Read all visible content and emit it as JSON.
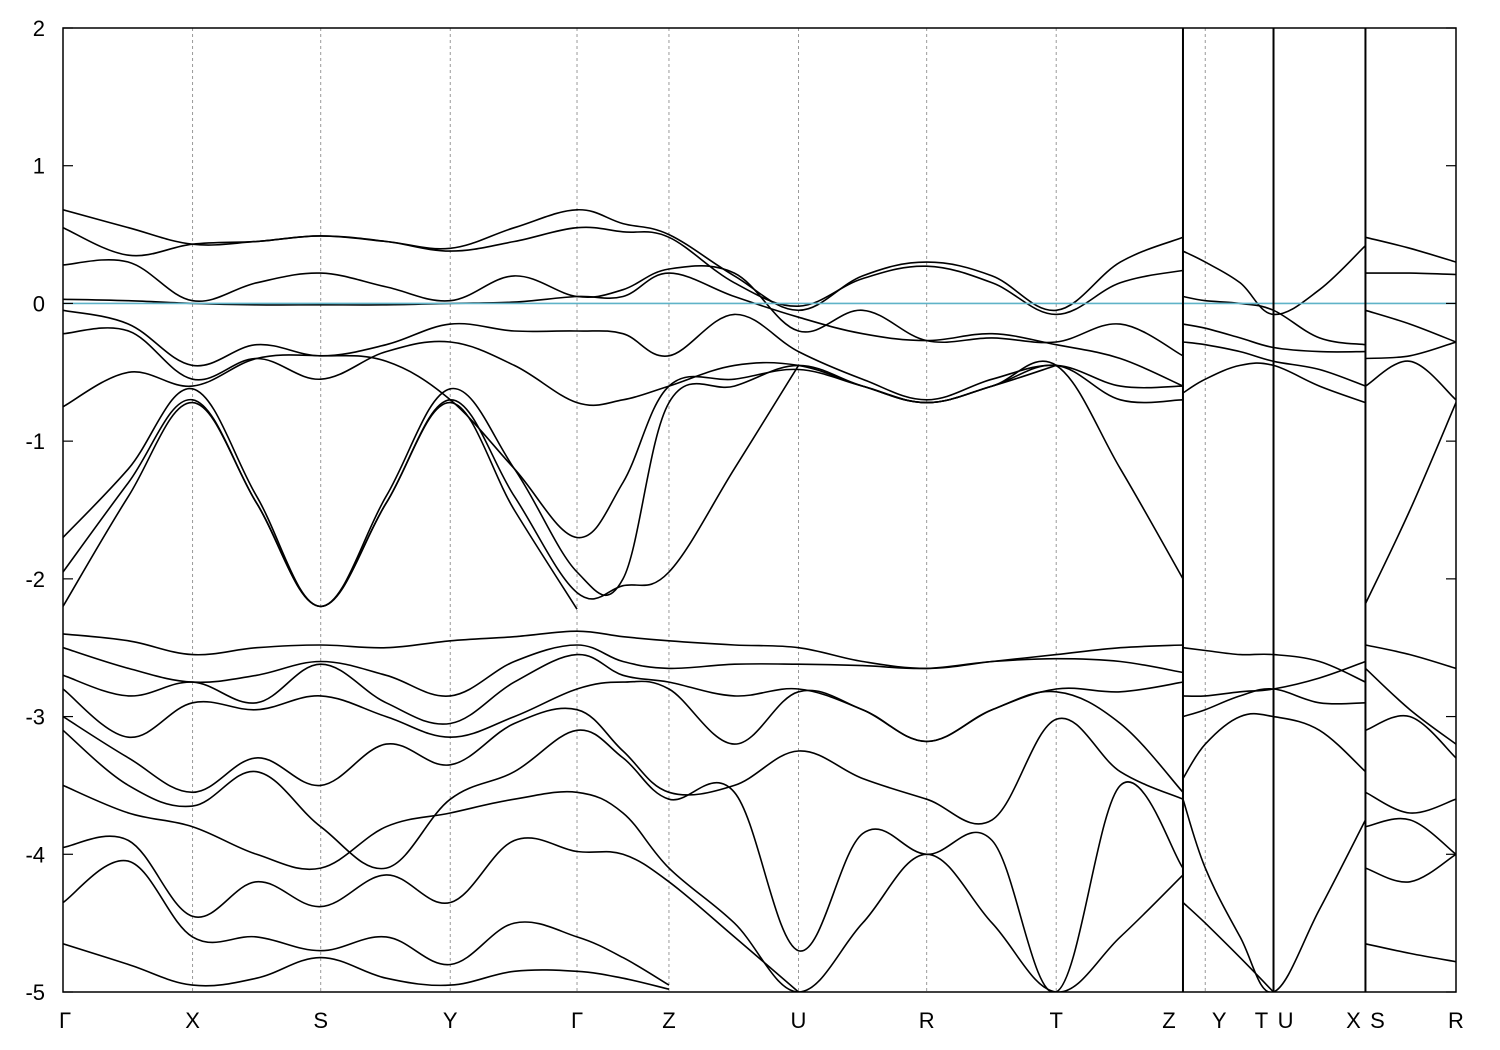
{
  "chart_data": {
    "type": "line",
    "title": "",
    "xlabel": "",
    "ylabel": "",
    "ylim": [
      -5,
      2
    ],
    "yticks": [
      2,
      1,
      0,
      -1,
      -2,
      -3,
      -4,
      -5
    ],
    "ytick_labels": [
      "2",
      "1",
      "0",
      "-1",
      "-2",
      "-3",
      "-4",
      "-5"
    ],
    "kpath_labels": [
      "Γ",
      "X",
      "S",
      "Y",
      "Γ",
      "Z",
      "U",
      "R",
      "T",
      "Z",
      "Y",
      "T",
      "U",
      "X",
      "S",
      "R"
    ],
    "kpath_positions": [
      0,
      0.093,
      0.185,
      0.278,
      0.369,
      0.435,
      0.528,
      0.62,
      0.713,
      0.804,
      0.82,
      0.869,
      0.869,
      0.935,
      0.935,
      1.0
    ],
    "segment_breaks": [
      0.804,
      0.869,
      0.935
    ],
    "fermi_level": 0,
    "fermi_color": "#5fb3c8",
    "band_color": "#000000",
    "grid": "vertical dashed lines at high-symmetry points",
    "series": [
      {
        "x": [
          0,
          0.047,
          0.093,
          0.139,
          0.185,
          0.232,
          0.278,
          0.324,
          0.369,
          0.402,
          0.435,
          0.482,
          0.528,
          0.574,
          0.62,
          0.667,
          0.713,
          0.759,
          0.804
        ],
        "values": [
          0.68,
          0.55,
          0.43,
          0.45,
          0.49,
          0.45,
          0.4,
          0.55,
          0.68,
          0.58,
          0.5,
          0.2,
          -0.05,
          0.2,
          0.3,
          0.2,
          -0.05,
          0.3,
          0.48
        ]
      },
      {
        "x": [
          0,
          0.047,
          0.093,
          0.139,
          0.185,
          0.232,
          0.278,
          0.324,
          0.369,
          0.402,
          0.435,
          0.482,
          0.528,
          0.574,
          0.62,
          0.667,
          0.713,
          0.759,
          0.804
        ],
        "values": [
          0.55,
          0.35,
          0.43,
          0.45,
          0.49,
          0.45,
          0.38,
          0.45,
          0.55,
          0.52,
          0.48,
          0.15,
          -0.02,
          0.18,
          0.27,
          0.15,
          -0.08,
          0.15,
          0.24
        ]
      },
      {
        "x": [
          0,
          0.047,
          0.093,
          0.139,
          0.185,
          0.232,
          0.278,
          0.324,
          0.369,
          0.402,
          0.435,
          0.482,
          0.528,
          0.574,
          0.62,
          0.667,
          0.713,
          0.759,
          0.804
        ],
        "values": [
          0.28,
          0.3,
          0.02,
          0.15,
          0.22,
          0.12,
          0.02,
          0.2,
          0.05,
          0.1,
          0.25,
          0.22,
          -0.2,
          -0.05,
          -0.27,
          -0.25,
          -0.28,
          -0.15,
          -0.38
        ]
      },
      {
        "x": [
          0,
          0.047,
          0.093,
          0.139,
          0.185,
          0.232,
          0.278,
          0.324,
          0.369,
          0.402,
          0.435,
          0.482,
          0.528,
          0.574,
          0.62,
          0.667,
          0.713,
          0.759,
          0.804
        ],
        "values": [
          0.03,
          0.02,
          0.0,
          -0.01,
          -0.01,
          -0.01,
          0.0,
          0.01,
          0.05,
          0.05,
          0.22,
          0.05,
          -0.1,
          -0.22,
          -0.27,
          -0.22,
          -0.3,
          -0.4,
          -0.6
        ]
      },
      {
        "x": [
          0,
          0.047,
          0.093,
          0.139,
          0.185,
          0.232,
          0.278,
          0.324,
          0.369,
          0.402,
          0.435,
          0.482,
          0.528,
          0.574,
          0.62,
          0.667,
          0.713,
          0.759,
          0.804
        ],
        "values": [
          -0.05,
          -0.15,
          -0.45,
          -0.3,
          -0.38,
          -0.3,
          -0.15,
          -0.2,
          -0.2,
          -0.22,
          -0.38,
          -0.08,
          -0.35,
          -0.55,
          -0.7,
          -0.55,
          -0.45,
          -0.6,
          -0.6
        ]
      },
      {
        "x": [
          0,
          0.047,
          0.093,
          0.139,
          0.185,
          0.232,
          0.278,
          0.324,
          0.369,
          0.402,
          0.435,
          0.482,
          0.528,
          0.574,
          0.62,
          0.667,
          0.713,
          0.759,
          0.804
        ],
        "values": [
          -0.22,
          -0.2,
          -0.55,
          -0.4,
          -0.55,
          -0.35,
          -0.28,
          -0.45,
          -0.72,
          -0.7,
          -0.6,
          -0.45,
          -0.45,
          -0.6,
          -0.72,
          -0.6,
          -0.45,
          -0.7,
          -0.7
        ]
      },
      {
        "x": [
          0,
          0.047,
          0.093,
          0.139,
          0.185,
          0.232,
          0.278,
          0.324,
          0.369,
          0.402,
          0.435,
          0.482,
          0.528,
          0.574,
          0.62,
          0.667,
          0.713,
          0.759,
          0.804
        ],
        "values": [
          -0.75,
          -0.5,
          -0.6,
          -0.4,
          -0.38,
          -0.42,
          -0.7,
          -1.2,
          -1.7,
          -1.3,
          -0.6,
          -0.55,
          -0.48,
          -0.6,
          -0.72,
          -0.6,
          -0.45,
          -1.2,
          -2.0
        ]
      },
      {
        "x": [
          0,
          0.047,
          0.093,
          0.139,
          0.185,
          0.232,
          0.278,
          0.324,
          0.369,
          0.402,
          0.435,
          0.482,
          0.528,
          0.574,
          0.62,
          0.667,
          0.713
        ],
        "values": [
          -1.7,
          -1.2,
          -0.62,
          -1.4,
          -2.2,
          -1.4,
          -0.62,
          -1.2,
          -1.95,
          -2.0,
          -0.72,
          -0.6,
          -0.45,
          -0.6,
          -0.72,
          -0.6,
          -0.45
        ]
      },
      {
        "x": [
          0,
          0.047,
          0.093,
          0.139,
          0.185,
          0.232,
          0.278,
          0.324,
          0.369,
          0.402,
          0.435,
          0.482,
          0.528
        ],
        "values": [
          -1.95,
          -1.3,
          -0.7,
          -1.45,
          -2.2,
          -1.45,
          -0.7,
          -1.4,
          -2.1,
          -2.05,
          -1.95,
          -1.2,
          -0.45
        ]
      },
      {
        "x": [
          0,
          0.047,
          0.093,
          0.139,
          0.185,
          0.232,
          0.278,
          0.324,
          0.369
        ],
        "values": [
          -2.2,
          -1.4,
          -0.72,
          -1.45,
          -2.2,
          -1.45,
          -0.72,
          -1.5,
          -2.22
        ]
      },
      {
        "x": [
          0,
          0.047,
          0.093,
          0.139,
          0.185,
          0.232,
          0.278,
          0.324,
          0.369,
          0.402,
          0.435,
          0.482,
          0.528,
          0.574,
          0.62,
          0.667,
          0.713,
          0.759,
          0.804
        ],
        "values": [
          -2.4,
          -2.45,
          -2.55,
          -2.5,
          -2.48,
          -2.5,
          -2.45,
          -2.42,
          -2.38,
          -2.42,
          -2.45,
          -2.48,
          -2.5,
          -2.6,
          -2.65,
          -2.6,
          -2.55,
          -2.5,
          -2.48
        ]
      },
      {
        "x": [
          0,
          0.047,
          0.093,
          0.139,
          0.185,
          0.232,
          0.278,
          0.324,
          0.369,
          0.402,
          0.435,
          0.482,
          0.528,
          0.574,
          0.62,
          0.667,
          0.713,
          0.759,
          0.804
        ],
        "values": [
          -2.5,
          -2.65,
          -2.75,
          -2.7,
          -2.6,
          -2.7,
          -2.85,
          -2.6,
          -2.48,
          -2.6,
          -2.65,
          -2.62,
          -2.62,
          -2.63,
          -2.65,
          -2.6,
          -2.58,
          -2.6,
          -2.68
        ]
      },
      {
        "x": [
          0,
          0.047,
          0.093,
          0.139,
          0.185,
          0.232,
          0.278,
          0.324,
          0.369,
          0.402,
          0.435,
          0.482,
          0.528,
          0.574,
          0.62,
          0.667,
          0.713,
          0.759,
          0.804
        ],
        "values": [
          -2.7,
          -2.85,
          -2.75,
          -2.9,
          -2.62,
          -2.9,
          -3.05,
          -2.75,
          -2.55,
          -2.7,
          -2.75,
          -2.85,
          -2.8,
          -2.95,
          -3.18,
          -2.95,
          -2.8,
          -2.82,
          -2.75
        ]
      },
      {
        "x": [
          0,
          0.047,
          0.093,
          0.139,
          0.185,
          0.232,
          0.278,
          0.324,
          0.369,
          0.402,
          0.435,
          0.482,
          0.528,
          0.574,
          0.62,
          0.667,
          0.713,
          0.759,
          0.804
        ],
        "values": [
          -2.8,
          -3.15,
          -2.9,
          -2.95,
          -2.85,
          -3.0,
          -3.15,
          -3.0,
          -2.8,
          -2.75,
          -2.8,
          -3.2,
          -2.82,
          -2.95,
          -3.18,
          -2.95,
          -2.82,
          -3.05,
          -3.55
        ]
      },
      {
        "x": [
          0,
          0.047,
          0.093,
          0.139,
          0.185,
          0.232,
          0.278,
          0.324,
          0.369,
          0.402,
          0.435,
          0.482,
          0.528,
          0.574,
          0.62,
          0.667,
          0.713,
          0.759,
          0.804
        ],
        "values": [
          -3.0,
          -3.3,
          -3.55,
          -3.3,
          -3.5,
          -3.2,
          -3.35,
          -3.05,
          -2.95,
          -3.25,
          -3.55,
          -3.5,
          -3.25,
          -3.45,
          -3.6,
          -3.75,
          -3.02,
          -3.4,
          -3.6
        ]
      },
      {
        "x": [
          0,
          0.047,
          0.093,
          0.139,
          0.185,
          0.232,
          0.278,
          0.324,
          0.369,
          0.402,
          0.435,
          0.482,
          0.528,
          0.574,
          0.62,
          0.667,
          0.713,
          0.759,
          0.804
        ],
        "values": [
          -3.1,
          -3.5,
          -3.65,
          -3.4,
          -3.8,
          -4.1,
          -3.6,
          -3.4,
          -3.1,
          -3.3,
          -3.6,
          -3.55,
          -4.7,
          -3.85,
          -4.0,
          -3.9,
          -5.0,
          -3.5,
          -4.1
        ]
      },
      {
        "x": [
          0,
          0.047,
          0.093,
          0.139,
          0.185,
          0.232,
          0.278,
          0.324,
          0.369,
          0.402,
          0.435,
          0.482,
          0.528,
          0.574,
          0.62,
          0.667,
          0.713,
          0.759,
          0.804
        ],
        "values": [
          -3.5,
          -3.7,
          -3.8,
          -4.0,
          -4.1,
          -3.8,
          -3.7,
          -3.6,
          -3.55,
          -3.7,
          -4.1,
          -4.5,
          -5.0,
          -4.5,
          -4.0,
          -4.5,
          -5.0,
          -4.6,
          -4.15
        ]
      },
      {
        "x": [
          0,
          0.047,
          0.093,
          0.139,
          0.185,
          0.232,
          0.278,
          0.324,
          0.369,
          0.402,
          0.435,
          0.482,
          0.528
        ],
        "values": [
          -3.95,
          -3.9,
          -4.45,
          -4.2,
          -4.38,
          -4.15,
          -4.35,
          -3.9,
          -3.98,
          -4.0,
          -4.2,
          -4.6,
          -5.0
        ]
      },
      {
        "x": [
          0,
          0.047,
          0.093,
          0.139,
          0.185,
          0.232,
          0.278,
          0.324,
          0.369,
          0.402,
          0.435
        ],
        "values": [
          -4.35,
          -4.05,
          -4.6,
          -4.6,
          -4.7,
          -4.6,
          -4.8,
          -4.5,
          -4.6,
          -4.75,
          -4.95
        ]
      },
      {
        "x": [
          0,
          0.047,
          0.093,
          0.139,
          0.185,
          0.232,
          0.278,
          0.324,
          0.369,
          0.402,
          0.435
        ],
        "values": [
          -4.65,
          -4.8,
          -4.95,
          -4.9,
          -4.75,
          -4.9,
          -4.95,
          -4.85,
          -4.85,
          -4.9,
          -4.98
        ]
      },
      {
        "x": [
          0.804,
          0.82,
          0.845,
          0.869,
          0.902,
          0.935
        ],
        "values": [
          0.38,
          0.3,
          0.15,
          -0.08,
          0.1,
          0.42
        ]
      },
      {
        "x": [
          0.804,
          0.82,
          0.845,
          0.869,
          0.902,
          0.935
        ],
        "values": [
          0.05,
          0.02,
          0.0,
          -0.05,
          -0.25,
          -0.3
        ]
      },
      {
        "x": [
          0.804,
          0.82,
          0.845,
          0.869,
          0.902,
          0.935
        ],
        "values": [
          -0.15,
          -0.18,
          -0.25,
          -0.32,
          -0.35,
          -0.35
        ]
      },
      {
        "x": [
          0.804,
          0.82,
          0.845,
          0.869,
          0.902,
          0.935
        ],
        "values": [
          -0.28,
          -0.3,
          -0.35,
          -0.42,
          -0.48,
          -0.6
        ]
      },
      {
        "x": [
          0.804,
          0.82,
          0.845,
          0.869,
          0.902,
          0.935
        ],
        "values": [
          -0.65,
          -0.55,
          -0.45,
          -0.45,
          -0.6,
          -0.72
        ]
      },
      {
        "x": [
          0.804,
          0.82,
          0.845,
          0.869,
          0.902,
          0.935
        ],
        "values": [
          -2.5,
          -2.52,
          -2.55,
          -2.55,
          -2.6,
          -2.75
        ]
      },
      {
        "x": [
          0.804,
          0.82,
          0.845,
          0.869,
          0.902,
          0.935
        ],
        "values": [
          -2.85,
          -2.85,
          -2.82,
          -2.8,
          -2.72,
          -2.6
        ]
      },
      {
        "x": [
          0.804,
          0.82,
          0.845,
          0.869,
          0.902,
          0.935
        ],
        "values": [
          -3.0,
          -2.95,
          -2.85,
          -2.8,
          -2.9,
          -2.9
        ]
      },
      {
        "x": [
          0.804,
          0.82,
          0.845,
          0.869,
          0.902,
          0.935
        ],
        "values": [
          -3.45,
          -3.2,
          -3.0,
          -3.0,
          -3.1,
          -3.4
        ]
      },
      {
        "x": [
          0.804,
          0.82,
          0.845,
          0.869,
          0.902,
          0.935
        ],
        "values": [
          -3.6,
          -4.1,
          -4.6,
          -5.0,
          -4.4,
          -3.75
        ]
      },
      {
        "x": [
          0.804,
          0.82,
          0.845,
          0.869
        ],
        "values": [
          -4.35,
          -4.5,
          -4.75,
          -5.0
        ]
      },
      {
        "x": [
          0.935,
          0.967,
          1.0
        ],
        "values": [
          0.48,
          0.4,
          0.3
        ]
      },
      {
        "x": [
          0.935,
          0.967,
          1.0
        ],
        "values": [
          0.22,
          0.22,
          0.21
        ]
      },
      {
        "x": [
          0.935,
          0.967,
          1.0
        ],
        "values": [
          -0.05,
          -0.15,
          -0.28
        ]
      },
      {
        "x": [
          0.935,
          0.967,
          1.0
        ],
        "values": [
          -0.4,
          -0.38,
          -0.28
        ]
      },
      {
        "x": [
          0.935,
          0.967,
          1.0
        ],
        "values": [
          -0.6,
          -0.42,
          -0.7
        ]
      },
      {
        "x": [
          0.935,
          0.967,
          1.0
        ],
        "values": [
          -2.18,
          -1.5,
          -0.72
        ]
      },
      {
        "x": [
          0.935,
          0.967,
          1.0
        ],
        "values": [
          -2.48,
          -2.55,
          -2.65
        ]
      },
      {
        "x": [
          0.935,
          0.967,
          1.0
        ],
        "values": [
          -2.65,
          -2.95,
          -3.2
        ]
      },
      {
        "x": [
          0.935,
          0.967,
          1.0
        ],
        "values": [
          -3.1,
          -3.0,
          -3.3
        ]
      },
      {
        "x": [
          0.935,
          0.967,
          1.0
        ],
        "values": [
          -3.55,
          -3.7,
          -3.6
        ]
      },
      {
        "x": [
          0.935,
          0.967,
          1.0
        ],
        "values": [
          -3.8,
          -3.75,
          -4.0
        ]
      },
      {
        "x": [
          0.935,
          0.967,
          1.0
        ],
        "values": [
          -4.1,
          -4.2,
          -4.0
        ]
      },
      {
        "x": [
          0.935,
          0.967,
          1.0
        ],
        "values": [
          -4.65,
          -4.72,
          -4.78
        ]
      }
    ]
  }
}
